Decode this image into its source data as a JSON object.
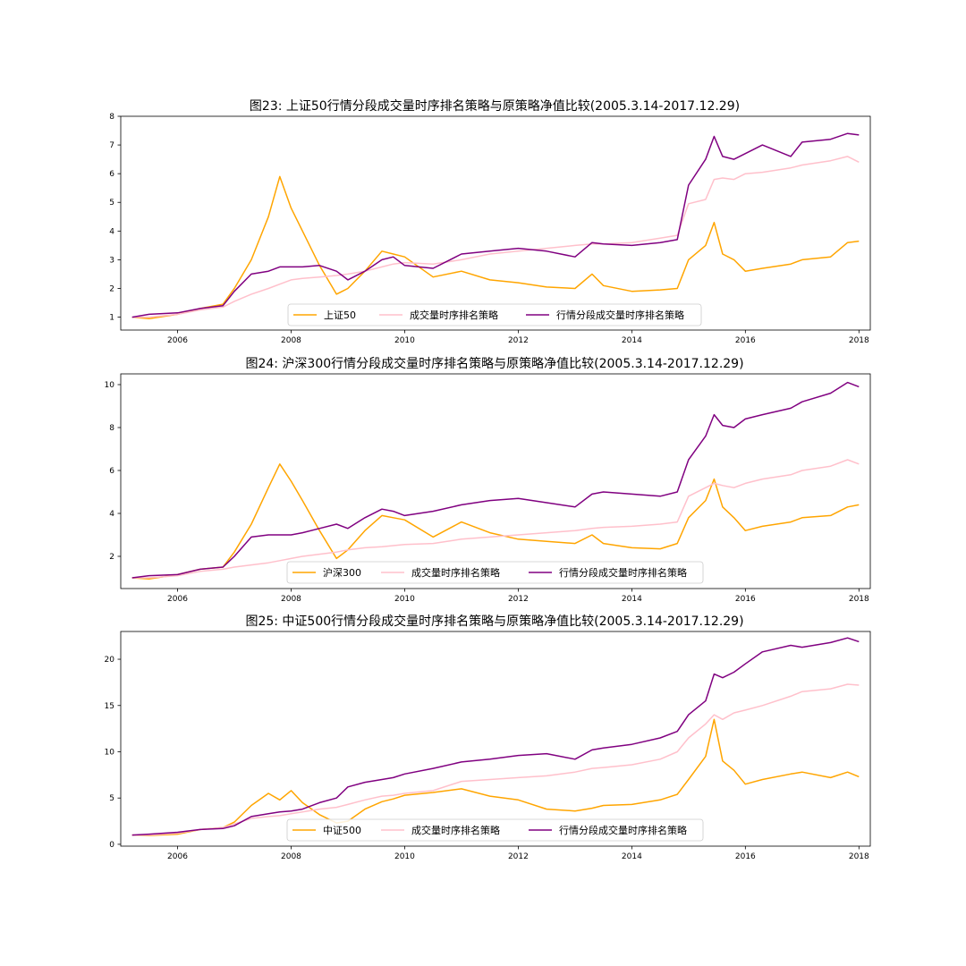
{
  "colors": {
    "index": "#ffa500",
    "volume": "#ffc0cb",
    "segmented": "#800080"
  },
  "chart_data": [
    {
      "type": "line",
      "title": "图23: 上证50行情分段成交量时序排名策略与原策略净值比较(2005.3.14-2017.12.29)",
      "xlabel": "",
      "ylabel": "",
      "xlim": [
        2005.0,
        2018.2
      ],
      "ylim": [
        0.55,
        8.0
      ],
      "xticks": [
        2006,
        2008,
        2010,
        2012,
        2014,
        2016,
        2018
      ],
      "yticks": [
        1,
        2,
        3,
        4,
        5,
        6,
        7,
        8
      ],
      "legend_position": "lower-center",
      "grid": false,
      "series": [
        {
          "name": "上证50",
          "x": [
            2005.2,
            2005.5,
            2006.0,
            2006.4,
            2006.8,
            2007.0,
            2007.3,
            2007.6,
            2007.8,
            2008.0,
            2008.2,
            2008.5,
            2008.8,
            2009.0,
            2009.3,
            2009.6,
            2009.8,
            2010.0,
            2010.5,
            2011.0,
            2011.5,
            2012.0,
            2012.5,
            2013.0,
            2013.3,
            2013.5,
            2014.0,
            2014.5,
            2014.8,
            2015.0,
            2015.3,
            2015.45,
            2015.6,
            2015.8,
            2016.0,
            2016.3,
            2016.8,
            2017.0,
            2017.5,
            2017.8,
            2018.0
          ],
          "values": [
            1.0,
            0.95,
            1.1,
            1.3,
            1.45,
            2.0,
            3.0,
            4.5,
            5.9,
            4.8,
            4.0,
            2.8,
            1.8,
            2.0,
            2.6,
            3.3,
            3.2,
            3.1,
            2.4,
            2.6,
            2.3,
            2.2,
            2.05,
            2.0,
            2.5,
            2.1,
            1.9,
            1.95,
            2.0,
            3.0,
            3.5,
            4.3,
            3.2,
            3.0,
            2.6,
            2.7,
            2.85,
            3.0,
            3.1,
            3.6,
            3.65
          ]
        },
        {
          "name": "成交量时序排名策略",
          "x": [
            2005.2,
            2005.5,
            2006.0,
            2006.4,
            2006.8,
            2007.0,
            2007.3,
            2007.6,
            2007.8,
            2008.0,
            2008.2,
            2008.5,
            2008.8,
            2009.0,
            2009.3,
            2009.6,
            2009.8,
            2010.0,
            2010.5,
            2011.0,
            2011.5,
            2012.0,
            2012.5,
            2013.0,
            2013.3,
            2013.5,
            2014.0,
            2014.5,
            2014.8,
            2015.0,
            2015.3,
            2015.45,
            2015.6,
            2015.8,
            2016.0,
            2016.3,
            2016.8,
            2017.0,
            2017.5,
            2017.8,
            2018.0
          ],
          "values": [
            1.0,
            1.0,
            1.1,
            1.25,
            1.35,
            1.55,
            1.8,
            2.0,
            2.15,
            2.3,
            2.35,
            2.4,
            2.45,
            2.5,
            2.6,
            2.75,
            2.85,
            2.9,
            2.85,
            3.0,
            3.2,
            3.3,
            3.4,
            3.5,
            3.55,
            3.55,
            3.6,
            3.75,
            3.85,
            4.95,
            5.1,
            5.8,
            5.85,
            5.8,
            6.0,
            6.05,
            6.2,
            6.3,
            6.45,
            6.6,
            6.4
          ]
        },
        {
          "name": "行情分段成交量时序排名策略",
          "x": [
            2005.2,
            2005.5,
            2006.0,
            2006.4,
            2006.8,
            2007.0,
            2007.3,
            2007.6,
            2007.8,
            2008.0,
            2008.2,
            2008.5,
            2008.8,
            2009.0,
            2009.3,
            2009.6,
            2009.8,
            2010.0,
            2010.5,
            2011.0,
            2011.5,
            2012.0,
            2012.5,
            2013.0,
            2013.3,
            2013.5,
            2014.0,
            2014.5,
            2014.8,
            2015.0,
            2015.3,
            2015.45,
            2015.6,
            2015.8,
            2016.0,
            2016.3,
            2016.8,
            2017.0,
            2017.5,
            2017.8,
            2018.0
          ],
          "values": [
            1.0,
            1.1,
            1.15,
            1.3,
            1.4,
            1.9,
            2.5,
            2.6,
            2.75,
            2.75,
            2.75,
            2.8,
            2.6,
            2.3,
            2.6,
            3.0,
            3.1,
            2.8,
            2.7,
            3.2,
            3.3,
            3.4,
            3.3,
            3.1,
            3.6,
            3.55,
            3.5,
            3.6,
            3.7,
            5.6,
            6.5,
            7.3,
            6.6,
            6.5,
            6.7,
            7.0,
            6.6,
            7.1,
            7.2,
            7.4,
            7.35
          ]
        }
      ]
    },
    {
      "type": "line",
      "title": "图24: 沪深300行情分段成交量时序排名策略与原策略净值比较(2005.3.14-2017.12.29)",
      "xlabel": "",
      "ylabel": "",
      "xlim": [
        2005.0,
        2018.2
      ],
      "ylim": [
        0.5,
        10.5
      ],
      "xticks": [
        2006,
        2008,
        2010,
        2012,
        2014,
        2016,
        2018
      ],
      "yticks": [
        2,
        4,
        6,
        8,
        10
      ],
      "legend_position": "lower-center",
      "grid": false,
      "series": [
        {
          "name": "沪深300",
          "x": [
            2005.2,
            2005.5,
            2006.0,
            2006.4,
            2006.8,
            2007.0,
            2007.3,
            2007.6,
            2007.8,
            2008.0,
            2008.2,
            2008.5,
            2008.8,
            2009.0,
            2009.3,
            2009.6,
            2009.8,
            2010.0,
            2010.5,
            2011.0,
            2011.5,
            2012.0,
            2012.5,
            2013.0,
            2013.3,
            2013.5,
            2014.0,
            2014.5,
            2014.8,
            2015.0,
            2015.3,
            2015.45,
            2015.6,
            2015.8,
            2016.0,
            2016.3,
            2016.8,
            2017.0,
            2017.5,
            2017.8,
            2018.0
          ],
          "values": [
            1.0,
            0.95,
            1.15,
            1.4,
            1.5,
            2.2,
            3.5,
            5.2,
            6.3,
            5.5,
            4.6,
            3.2,
            1.9,
            2.3,
            3.2,
            3.9,
            3.8,
            3.7,
            2.9,
            3.6,
            3.1,
            2.8,
            2.7,
            2.6,
            3.0,
            2.6,
            2.4,
            2.35,
            2.6,
            3.8,
            4.6,
            5.6,
            4.3,
            3.8,
            3.2,
            3.4,
            3.6,
            3.8,
            3.9,
            4.3,
            4.4
          ]
        },
        {
          "name": "成交量时序排名策略",
          "x": [
            2005.2,
            2005.5,
            2006.0,
            2006.4,
            2006.8,
            2007.0,
            2007.3,
            2007.6,
            2007.8,
            2008.0,
            2008.2,
            2008.5,
            2008.8,
            2009.0,
            2009.3,
            2009.6,
            2009.8,
            2010.0,
            2010.5,
            2011.0,
            2011.5,
            2012.0,
            2012.5,
            2013.0,
            2013.3,
            2013.5,
            2014.0,
            2014.5,
            2014.8,
            2015.0,
            2015.3,
            2015.45,
            2015.6,
            2015.8,
            2016.0,
            2016.3,
            2016.8,
            2017.0,
            2017.5,
            2017.8,
            2018.0
          ],
          "values": [
            1.0,
            1.0,
            1.1,
            1.3,
            1.4,
            1.5,
            1.6,
            1.7,
            1.8,
            1.9,
            2.0,
            2.1,
            2.2,
            2.3,
            2.4,
            2.45,
            2.5,
            2.55,
            2.6,
            2.8,
            2.9,
            3.0,
            3.1,
            3.2,
            3.3,
            3.35,
            3.4,
            3.5,
            3.6,
            4.8,
            5.2,
            5.4,
            5.3,
            5.2,
            5.4,
            5.6,
            5.8,
            6.0,
            6.2,
            6.5,
            6.3
          ]
        },
        {
          "name": "行情分段成交量时序排名策略",
          "x": [
            2005.2,
            2005.5,
            2006.0,
            2006.4,
            2006.8,
            2007.0,
            2007.3,
            2007.6,
            2007.8,
            2008.0,
            2008.2,
            2008.5,
            2008.8,
            2009.0,
            2009.3,
            2009.6,
            2009.8,
            2010.0,
            2010.5,
            2011.0,
            2011.5,
            2012.0,
            2012.5,
            2013.0,
            2013.3,
            2013.5,
            2014.0,
            2014.5,
            2014.8,
            2015.0,
            2015.3,
            2015.45,
            2015.6,
            2015.8,
            2016.0,
            2016.3,
            2016.8,
            2017.0,
            2017.5,
            2017.8,
            2018.0
          ],
          "values": [
            1.0,
            1.1,
            1.15,
            1.4,
            1.5,
            2.0,
            2.9,
            3.0,
            3.0,
            3.0,
            3.1,
            3.3,
            3.5,
            3.3,
            3.8,
            4.2,
            4.1,
            3.9,
            4.1,
            4.4,
            4.6,
            4.7,
            4.5,
            4.3,
            4.9,
            5.0,
            4.9,
            4.8,
            5.0,
            6.5,
            7.6,
            8.6,
            8.1,
            8.0,
            8.4,
            8.6,
            8.9,
            9.2,
            9.6,
            10.1,
            9.9
          ]
        }
      ]
    },
    {
      "type": "line",
      "title": "图25: 中证500行情分段成交量时序排名策略与原策略净值比较(2005.3.14-2017.12.29)",
      "xlabel": "",
      "ylabel": "",
      "xlim": [
        2005.0,
        2018.2
      ],
      "ylim": [
        -0.2,
        23.0
      ],
      "xticks": [
        2006,
        2008,
        2010,
        2012,
        2014,
        2016,
        2018
      ],
      "yticks": [
        0,
        5,
        10,
        15,
        20
      ],
      "legend_position": "lower-center",
      "grid": false,
      "series": [
        {
          "name": "中证500",
          "x": [
            2005.2,
            2005.5,
            2006.0,
            2006.4,
            2006.8,
            2007.0,
            2007.3,
            2007.6,
            2007.8,
            2008.0,
            2008.2,
            2008.5,
            2008.8,
            2009.0,
            2009.3,
            2009.6,
            2009.8,
            2010.0,
            2010.5,
            2011.0,
            2011.5,
            2012.0,
            2012.5,
            2013.0,
            2013.3,
            2013.5,
            2014.0,
            2014.5,
            2014.8,
            2015.0,
            2015.3,
            2015.45,
            2015.6,
            2015.8,
            2016.0,
            2016.3,
            2016.8,
            2017.0,
            2017.5,
            2017.8,
            2018.0
          ],
          "values": [
            1.0,
            0.95,
            1.1,
            1.6,
            1.8,
            2.4,
            4.2,
            5.5,
            4.8,
            5.8,
            4.5,
            3.2,
            2.3,
            2.5,
            3.8,
            4.6,
            4.9,
            5.3,
            5.6,
            6.0,
            5.2,
            4.8,
            3.8,
            3.6,
            3.9,
            4.2,
            4.3,
            4.8,
            5.4,
            7.0,
            9.5,
            13.5,
            9.0,
            8.0,
            6.5,
            7.0,
            7.6,
            7.8,
            7.2,
            7.8,
            7.3
          ]
        },
        {
          "name": "成交量时序排名策略",
          "x": [
            2005.2,
            2005.5,
            2006.0,
            2006.4,
            2006.8,
            2007.0,
            2007.3,
            2007.6,
            2007.8,
            2008.0,
            2008.2,
            2008.5,
            2008.8,
            2009.0,
            2009.3,
            2009.6,
            2009.8,
            2010.0,
            2010.5,
            2011.0,
            2011.5,
            2012.0,
            2012.5,
            2013.0,
            2013.3,
            2013.5,
            2014.0,
            2014.5,
            2014.8,
            2015.0,
            2015.3,
            2015.45,
            2015.6,
            2015.8,
            2016.0,
            2016.3,
            2016.8,
            2017.0,
            2017.5,
            2017.8,
            2018.0
          ],
          "values": [
            1.0,
            1.0,
            1.2,
            1.6,
            1.8,
            2.2,
            2.8,
            3.0,
            3.1,
            3.3,
            3.5,
            3.8,
            4.0,
            4.3,
            4.8,
            5.2,
            5.3,
            5.5,
            5.8,
            6.8,
            7.0,
            7.2,
            7.4,
            7.8,
            8.2,
            8.3,
            8.6,
            9.2,
            10.0,
            11.5,
            13.0,
            14.0,
            13.5,
            14.2,
            14.5,
            15.0,
            16.0,
            16.5,
            16.8,
            17.3,
            17.2
          ]
        },
        {
          "name": "行情分段成交量时序排名策略",
          "x": [
            2005.2,
            2005.5,
            2006.0,
            2006.4,
            2006.8,
            2007.0,
            2007.3,
            2007.6,
            2007.8,
            2008.0,
            2008.2,
            2008.5,
            2008.8,
            2009.0,
            2009.3,
            2009.6,
            2009.8,
            2010.0,
            2010.5,
            2011.0,
            2011.5,
            2012.0,
            2012.5,
            2013.0,
            2013.3,
            2013.5,
            2014.0,
            2014.5,
            2014.8,
            2015.0,
            2015.3,
            2015.45,
            2015.6,
            2015.8,
            2016.0,
            2016.3,
            2016.8,
            2017.0,
            2017.5,
            2017.8,
            2018.0
          ],
          "values": [
            1.0,
            1.1,
            1.3,
            1.6,
            1.7,
            2.0,
            3.0,
            3.3,
            3.5,
            3.6,
            3.8,
            4.5,
            5.0,
            6.2,
            6.7,
            7.0,
            7.2,
            7.6,
            8.2,
            8.9,
            9.2,
            9.6,
            9.8,
            9.2,
            10.2,
            10.4,
            10.8,
            11.5,
            12.2,
            14.0,
            15.5,
            18.4,
            18.0,
            18.6,
            19.5,
            20.8,
            21.5,
            21.3,
            21.8,
            22.3,
            21.9
          ]
        }
      ]
    }
  ]
}
